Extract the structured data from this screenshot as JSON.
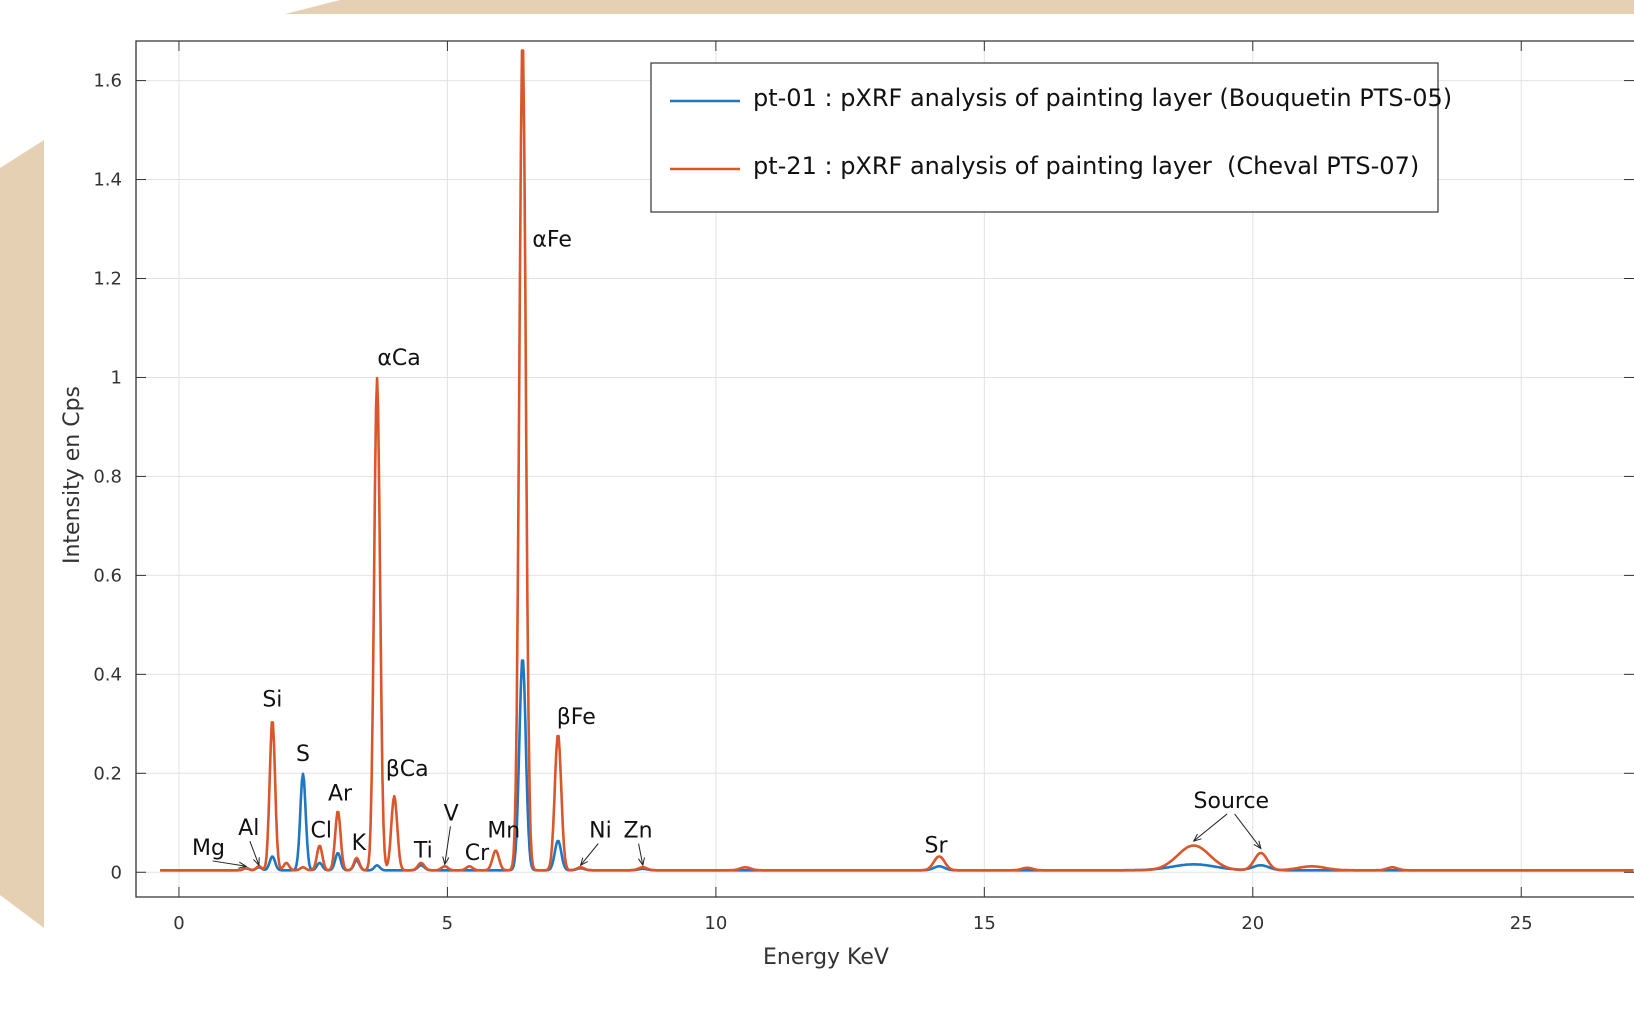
{
  "chart_data": {
    "type": "line",
    "title": "",
    "xlabel": "Energy KeV",
    "ylabel": "Intensity en Cps",
    "xlim": [
      -0.8,
      27.1
    ],
    "ylim": [
      -0.05,
      1.68
    ],
    "x_ticks": [
      0,
      5,
      10,
      15,
      20,
      25
    ],
    "y_ticks": [
      0,
      0.2,
      0.4,
      0.6,
      0.8,
      1,
      1.2,
      1.4,
      1.6
    ],
    "x_tick_labels": [
      "0",
      "5",
      "10",
      "15",
      "20",
      "25"
    ],
    "y_tick_labels": [
      "0",
      "0.2",
      "0.4",
      "0.6",
      "0.8",
      "1",
      "1.2",
      "1.4",
      "1.6"
    ],
    "grid": true,
    "legend_position": "top-right",
    "series": [
      {
        "name": "pt-01 : pXRF analysis of painting layer (Bouquetin PTS-05)",
        "color": "#1f77c4",
        "peaks": [
          {
            "x": 1.25,
            "y": 0.004,
            "w": 0.05
          },
          {
            "x": 1.49,
            "y": 0.006,
            "w": 0.05
          },
          {
            "x": 1.74,
            "y": 0.028,
            "w": 0.05
          },
          {
            "x": 2.31,
            "y": 0.195,
            "w": 0.05
          },
          {
            "x": 2.62,
            "y": 0.015,
            "w": 0.05
          },
          {
            "x": 2.96,
            "y": 0.035,
            "w": 0.05
          },
          {
            "x": 3.31,
            "y": 0.02,
            "w": 0.05
          },
          {
            "x": 3.69,
            "y": 0.01,
            "w": 0.05
          },
          {
            "x": 4.51,
            "y": 0.01,
            "w": 0.06
          },
          {
            "x": 6.4,
            "y": 0.43,
            "w": 0.06
          },
          {
            "x": 7.06,
            "y": 0.06,
            "w": 0.06
          },
          {
            "x": 7.48,
            "y": 0.004,
            "w": 0.07
          },
          {
            "x": 8.64,
            "y": 0.003,
            "w": 0.08
          },
          {
            "x": 14.16,
            "y": 0.008,
            "w": 0.1
          },
          {
            "x": 18.9,
            "y": 0.012,
            "w": 0.4
          },
          {
            "x": 20.15,
            "y": 0.01,
            "w": 0.15
          }
        ]
      },
      {
        "name": "pt-21 : pXRF analysis of painting layer  (Cheval PTS-07)",
        "color": "#d9572b",
        "peaks": [
          {
            "x": 1.25,
            "y": 0.005,
            "w": 0.05
          },
          {
            "x": 1.49,
            "y": 0.008,
            "w": 0.05
          },
          {
            "x": 1.74,
            "y": 0.305,
            "w": 0.05
          },
          {
            "x": 2.0,
            "y": 0.015,
            "w": 0.05
          },
          {
            "x": 2.31,
            "y": 0.006,
            "w": 0.05
          },
          {
            "x": 2.62,
            "y": 0.05,
            "w": 0.05
          },
          {
            "x": 2.96,
            "y": 0.12,
            "w": 0.05
          },
          {
            "x": 3.31,
            "y": 0.025,
            "w": 0.05
          },
          {
            "x": 3.69,
            "y": 0.995,
            "w": 0.055
          },
          {
            "x": 4.01,
            "y": 0.15,
            "w": 0.055
          },
          {
            "x": 4.51,
            "y": 0.015,
            "w": 0.06
          },
          {
            "x": 4.95,
            "y": 0.008,
            "w": 0.06
          },
          {
            "x": 5.41,
            "y": 0.008,
            "w": 0.06
          },
          {
            "x": 5.9,
            "y": 0.04,
            "w": 0.06
          },
          {
            "x": 6.4,
            "y": 1.68,
            "w": 0.06
          },
          {
            "x": 7.06,
            "y": 0.275,
            "w": 0.06
          },
          {
            "x": 7.48,
            "y": 0.006,
            "w": 0.07
          },
          {
            "x": 8.64,
            "y": 0.006,
            "w": 0.08
          },
          {
            "x": 10.55,
            "y": 0.006,
            "w": 0.1
          },
          {
            "x": 14.16,
            "y": 0.028,
            "w": 0.1
          },
          {
            "x": 15.8,
            "y": 0.005,
            "w": 0.1
          },
          {
            "x": 18.9,
            "y": 0.05,
            "w": 0.3
          },
          {
            "x": 20.15,
            "y": 0.035,
            "w": 0.12
          },
          {
            "x": 21.1,
            "y": 0.008,
            "w": 0.25
          },
          {
            "x": 22.6,
            "y": 0.006,
            "w": 0.1
          }
        ]
      }
    ],
    "annotations": [
      {
        "label": "Mg",
        "x": 0.55,
        "y": 0.035,
        "arrow_to": [
          1.25,
          0.004
        ]
      },
      {
        "label": "Al",
        "x": 1.3,
        "y": 0.075,
        "arrow_to": [
          1.49,
          0.006
        ]
      },
      {
        "label": "Si",
        "x": 1.74,
        "y": 0.335
      },
      {
        "label": "S",
        "x": 2.31,
        "y": 0.225
      },
      {
        "label": "Cl",
        "x": 2.65,
        "y": 0.07
      },
      {
        "label": "Ar",
        "x": 3.0,
        "y": 0.145
      },
      {
        "label": "K",
        "x": 3.35,
        "y": 0.045
      },
      {
        "label": "αCa",
        "x": 4.1,
        "y": 1.025
      },
      {
        "label": "βCa",
        "x": 4.25,
        "y": 0.195
      },
      {
        "label": "Ti",
        "x": 4.55,
        "y": 0.03
      },
      {
        "label": "V",
        "x": 5.07,
        "y": 0.105,
        "arrow_to": [
          4.95,
          0.008
        ]
      },
      {
        "label": "Cr",
        "x": 5.55,
        "y": 0.025
      },
      {
        "label": "Mn",
        "x": 6.05,
        "y": 0.07
      },
      {
        "label": "αFe",
        "x": 6.95,
        "y": 1.265
      },
      {
        "label": "βFe",
        "x": 7.4,
        "y": 0.3
      },
      {
        "label": "Ni",
        "x": 7.85,
        "y": 0.07,
        "arrow_to": [
          7.48,
          0.006
        ]
      },
      {
        "label": "Zn",
        "x": 8.55,
        "y": 0.07,
        "arrow_to": [
          8.64,
          0.006
        ]
      },
      {
        "label": "Sr",
        "x": 14.1,
        "y": 0.04
      },
      {
        "label": "Source",
        "x": 19.6,
        "y": 0.13,
        "arrow_to": [
          [
            18.9,
            0.055
          ],
          [
            20.15,
            0.04
          ]
        ]
      }
    ]
  }
}
